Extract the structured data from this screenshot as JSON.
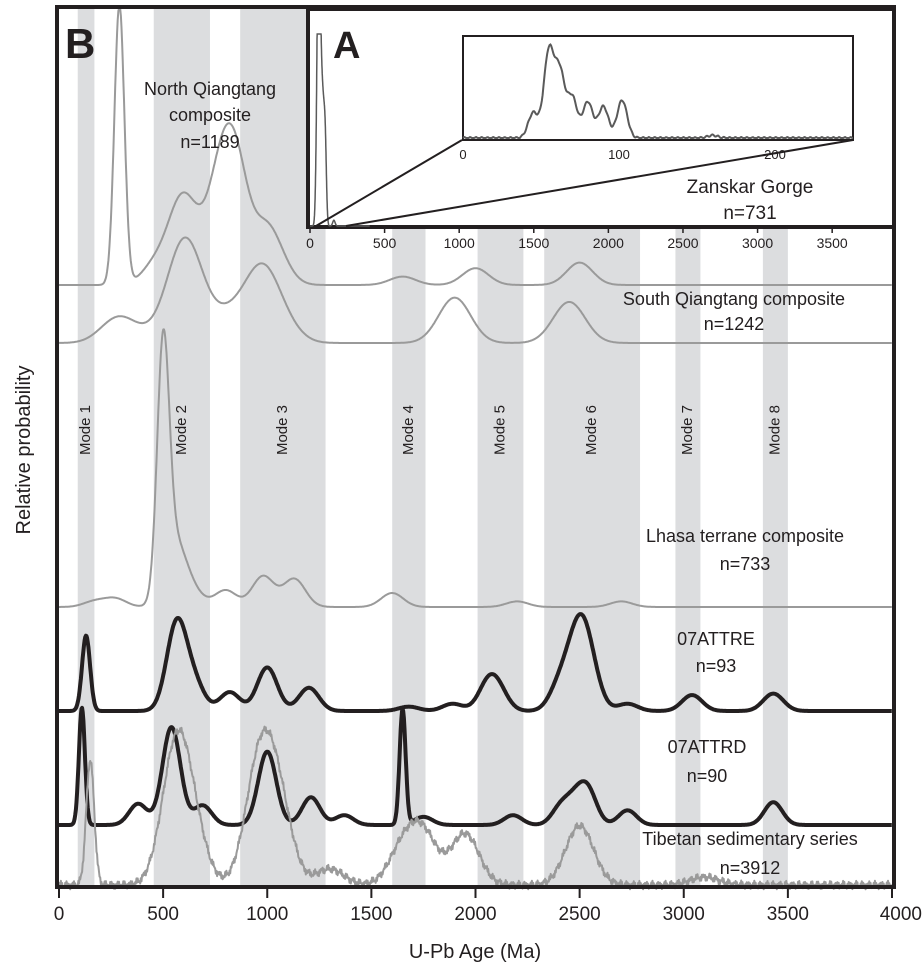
{
  "chart_data": {
    "type": "line",
    "main": {
      "panel_label": "B",
      "xlabel": "U-Pb Age (Ma)",
      "ylabel": "Relative probability",
      "xlim": [
        0,
        4000
      ],
      "xticks": [
        "0",
        "500",
        "1000",
        "1500",
        "2000",
        "2500",
        "3000",
        "3500",
        "4000"
      ],
      "modes": [
        {
          "label": "Mode 1",
          "range": [
            90,
            170
          ]
        },
        {
          "label": "Mode 2",
          "range": [
            455,
            725
          ]
        },
        {
          "label": "Mode 3",
          "range": [
            870,
            1280
          ]
        },
        {
          "label": "Mode 4",
          "range": [
            1600,
            1760
          ]
        },
        {
          "label": "Mode 5",
          "range": [
            2010,
            2230
          ]
        },
        {
          "label": "Mode 6",
          "range": [
            2330,
            2790
          ]
        },
        {
          "label": "Mode 7",
          "range": [
            2960,
            3080
          ]
        },
        {
          "label": "Mode 8",
          "range": [
            3380,
            3500
          ]
        }
      ],
      "series": [
        {
          "name": "North Qiangtang composite",
          "n": "n=1189",
          "color": "#9a9a9a",
          "peaks": [
            [
              290,
              1.0
            ],
            [
              460,
              0.07
            ],
            [
              575,
              0.22
            ],
            [
              640,
              0.14
            ],
            [
              770,
              0.32
            ],
            [
              850,
              0.38
            ],
            [
              990,
              0.17
            ],
            [
              1060,
              0.06
            ],
            [
              1650,
              0.03
            ],
            [
              2000,
              0.06
            ],
            [
              2500,
              0.08
            ]
          ]
        },
        {
          "name": "South Qiangtang composite",
          "n": "n=1242",
          "color": "#9a9a9a",
          "peaks": [
            [
              250,
              0.1
            ],
            [
              300,
              0.12
            ],
            [
              350,
              0.05
            ],
            [
              460,
              0.05
            ],
            [
              580,
              0.58
            ],
            [
              640,
              0.45
            ],
            [
              780,
              0.16
            ],
            [
              880,
              0.2
            ],
            [
              980,
              0.58
            ],
            [
              1080,
              0.15
            ],
            [
              1900,
              0.42
            ],
            [
              2450,
              0.38
            ]
          ]
        },
        {
          "name": "Lhasa terrane composite",
          "n": "n=733",
          "color": "#9a9a9a",
          "peaks": [
            [
              170,
              0.02
            ],
            [
              270,
              0.03
            ],
            [
              500,
              0.86
            ],
            [
              555,
              0.22
            ],
            [
              640,
              0.05
            ],
            [
              800,
              0.06
            ],
            [
              980,
              0.11
            ],
            [
              1130,
              0.1
            ],
            [
              1600,
              0.05
            ],
            [
              2200,
              0.02
            ],
            [
              2700,
              0.02
            ]
          ]
        },
        {
          "name": "07ATTRE",
          "n": "n=93",
          "color": "#231f20",
          "peaks": [
            [
              130,
              0.52
            ],
            [
              565,
              0.6
            ],
            [
              650,
              0.18
            ],
            [
              820,
              0.13
            ],
            [
              1000,
              0.3
            ],
            [
              1200,
              0.16
            ],
            [
              1680,
              0.03
            ],
            [
              1890,
              0.05
            ],
            [
              2060,
              0.17
            ],
            [
              2110,
              0.12
            ],
            [
              2400,
              0.15
            ],
            [
              2460,
              0.2
            ],
            [
              2510,
              0.44
            ],
            [
              2560,
              0.17
            ],
            [
              2730,
              0.05
            ],
            [
              3040,
              0.11
            ],
            [
              3430,
              0.12
            ]
          ]
        },
        {
          "name": "07ATTRD",
          "n": "n=90",
          "color": "#231f20",
          "peaks": [
            [
              110,
              0.72
            ],
            [
              380,
              0.13
            ],
            [
              540,
              0.6
            ],
            [
              690,
              0.12
            ],
            [
              1000,
              0.45
            ],
            [
              1210,
              0.17
            ],
            [
              1370,
              0.06
            ],
            [
              1650,
              0.71
            ],
            [
              1750,
              0.05
            ],
            [
              2180,
              0.06
            ],
            [
              2410,
              0.11
            ],
            [
              2480,
              0.13
            ],
            [
              2540,
              0.2
            ],
            [
              2730,
              0.09
            ],
            [
              3430,
              0.14
            ]
          ]
        },
        {
          "name": "Tibetan sedimentary series",
          "n": "n=3912",
          "color": "#9a9a9a",
          "peaks": [
            [
              150,
              0.78
            ],
            [
              560,
              0.8
            ],
            [
              640,
              0.3
            ],
            [
              960,
              0.7
            ],
            [
              1050,
              0.5
            ],
            [
              1300,
              0.1
            ],
            [
              1650,
              0.22
            ],
            [
              1750,
              0.3
            ],
            [
              1950,
              0.32
            ],
            [
              2500,
              0.37
            ],
            [
              3100,
              0.05
            ]
          ]
        }
      ]
    },
    "inset": {
      "panel_label": "A",
      "series_name": "Zanskar Gorge",
      "n": "n=731",
      "xlim": [
        0,
        3700
      ],
      "xticks": [
        "0",
        "500",
        "1000",
        "1500",
        "2000",
        "2500",
        "3000",
        "3500"
      ],
      "zoom_xticks": [
        "0",
        "100",
        "200"
      ],
      "zoom_xlim": [
        0,
        250
      ],
      "peaks": [
        [
          45,
          0.28
        ],
        [
          55,
          0.95
        ],
        [
          62,
          0.72
        ],
        [
          70,
          0.45
        ],
        [
          80,
          0.4
        ],
        [
          90,
          0.35
        ],
        [
          102,
          0.42
        ],
        [
          160,
          0.03
        ]
      ]
    }
  }
}
